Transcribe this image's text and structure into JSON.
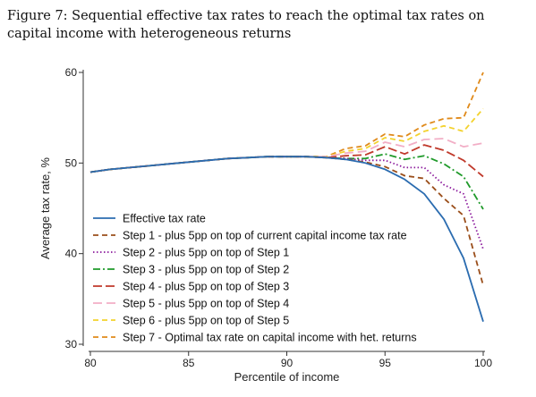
{
  "caption": "Figure 7: Sequential effective tax rates to reach the optimal tax rates on capital income with heterogeneous returns",
  "chart_data": {
    "type": "line",
    "title": "",
    "xlabel": "Percentile of income",
    "ylabel": "Average tax rate, %",
    "xlim": [
      80,
      100
    ],
    "ylim": [
      30,
      60
    ],
    "xticks": [
      80,
      85,
      90,
      95,
      100
    ],
    "yticks": [
      30,
      40,
      50,
      60
    ],
    "grid": false,
    "legend_position": "bottom-left",
    "x": [
      80,
      81,
      82,
      83,
      84,
      85,
      86,
      87,
      88,
      89,
      90,
      91,
      92,
      93,
      94,
      95,
      96,
      97,
      98,
      99,
      100
    ],
    "series": [
      {
        "name": "Effective tax rate",
        "color": "#2b6cb0",
        "dash": "solid",
        "values": [
          49.0,
          49.3,
          49.5,
          49.7,
          49.9,
          50.1,
          50.3,
          50.5,
          50.6,
          50.7,
          50.7,
          50.7,
          50.6,
          50.4,
          50.0,
          49.3,
          48.2,
          46.6,
          43.8,
          39.5,
          32.5
        ]
      },
      {
        "name": "Step 1 - plus 5pp on top of current capital income tax rate",
        "color": "#9a4e1a",
        "dash": "6,4",
        "values": [
          49.0,
          49.3,
          49.5,
          49.7,
          49.9,
          50.1,
          50.3,
          50.5,
          50.6,
          50.7,
          50.7,
          50.7,
          50.6,
          50.4,
          50.1,
          49.6,
          48.6,
          48.3,
          46.1,
          44.2,
          36.5
        ]
      },
      {
        "name": "Step 2 - plus 5pp on top of Step 1",
        "color": "#8b1a9c",
        "dash": "1.5,2.5",
        "values": [
          49.0,
          49.3,
          49.5,
          49.7,
          49.9,
          50.1,
          50.3,
          50.5,
          50.6,
          50.7,
          50.7,
          50.7,
          50.6,
          50.5,
          50.3,
          50.3,
          49.5,
          49.5,
          47.6,
          46.6,
          40.5
        ]
      },
      {
        "name": "Step 3 - plus 5pp on top of Step 2",
        "color": "#1f9a2a",
        "dash": "8,3,2,3",
        "values": [
          49.0,
          49.3,
          49.5,
          49.7,
          49.9,
          50.1,
          50.3,
          50.5,
          50.6,
          50.7,
          50.7,
          50.7,
          50.6,
          50.5,
          50.5,
          51.0,
          50.4,
          50.8,
          49.9,
          48.5,
          44.9
        ]
      },
      {
        "name": "Step 4 - plus 5pp on top of Step 3",
        "color": "#c0392b",
        "dash": "10,4",
        "values": [
          49.0,
          49.3,
          49.5,
          49.7,
          49.9,
          50.1,
          50.3,
          50.5,
          50.6,
          50.7,
          50.7,
          50.7,
          50.6,
          50.8,
          50.9,
          51.8,
          51.0,
          52.0,
          51.4,
          50.3,
          48.5
        ]
      },
      {
        "name": "Step 5 - plus 5pp on top of Step 4",
        "color": "#f2aec6",
        "dash": "10,5",
        "values": [
          49.0,
          49.3,
          49.5,
          49.7,
          49.9,
          50.1,
          50.3,
          50.5,
          50.6,
          50.7,
          50.7,
          50.7,
          50.7,
          51.1,
          51.3,
          52.3,
          51.8,
          52.6,
          52.7,
          51.8,
          52.2
        ]
      },
      {
        "name": "Step 6 - plus 5pp on top of Step 5",
        "color": "#f3d22d",
        "dash": "6,4",
        "values": [
          49.0,
          49.3,
          49.5,
          49.7,
          49.9,
          50.1,
          50.3,
          50.5,
          50.6,
          50.7,
          50.7,
          50.7,
          50.7,
          51.3,
          51.6,
          52.8,
          52.4,
          53.5,
          54.1,
          53.5,
          56.0
        ]
      },
      {
        "name": "Step 7 - Optimal tax rate on capital income with het. returns",
        "color": "#e08a1a",
        "dash": "6,4",
        "values": [
          49.0,
          49.3,
          49.5,
          49.7,
          49.9,
          50.1,
          50.3,
          50.5,
          50.6,
          50.7,
          50.7,
          50.7,
          50.7,
          51.6,
          51.9,
          53.2,
          52.9,
          54.2,
          54.9,
          55.0,
          60.0
        ]
      }
    ]
  }
}
